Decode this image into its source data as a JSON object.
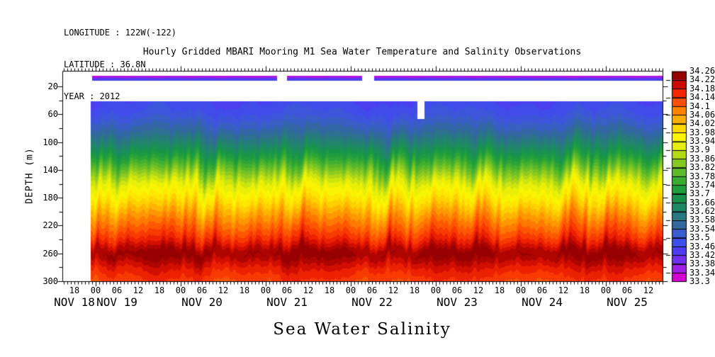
{
  "header": {
    "longitude": "LONGITUDE : 122W(-122)",
    "latitude": "LATITUDE : 36.8N",
    "year": "YEAR : 2012"
  },
  "title": "Hourly Gridded MBARI Mooring M1 Sea Water Temperature and Salinity Observations",
  "footer_title": "Sea Water Salinity",
  "chart_data": {
    "type": "heatmap",
    "title": "Hourly Gridded MBARI Mooring M1 Sea Water Temperature and Salinity Observations",
    "subtitle": "Sea Water Salinity",
    "ylabel": "DEPTH (m)",
    "x_axis": {
      "kind": "time",
      "start": "2012-11-18 14:30",
      "end": "2012-11-25 16:00",
      "first_labeled_hour": 18,
      "label_step_hours": 6,
      "minor_tick_every_hours": 1,
      "major_tick_every_hours": 24,
      "hour_tick_labels": [
        "18",
        "00",
        "06",
        "12",
        "18",
        "00",
        "06",
        "12",
        "18",
        "00",
        "06",
        "12",
        "18",
        "00",
        "06",
        "12",
        "18",
        "00",
        "06",
        "12",
        "18",
        "00",
        "06",
        "12",
        "18",
        "00",
        "06",
        "12"
      ],
      "date_labels": [
        {
          "text": "NOV 18",
          "hour": 18
        },
        {
          "text": "NOV 19",
          "hour": 30
        },
        {
          "text": "NOV 20",
          "hour": 54
        },
        {
          "text": "NOV 21",
          "hour": 78
        },
        {
          "text": "NOV 22",
          "hour": 102
        },
        {
          "text": "NOV 23",
          "hour": 126
        },
        {
          "text": "NOV 24",
          "hour": 150
        },
        {
          "text": "NOV 25",
          "hour": 174
        }
      ]
    },
    "y_axis": {
      "label": "DEPTH (m)",
      "units": "m",
      "range": [
        -2,
        300
      ],
      "labeled_ticks": [
        20,
        60,
        100,
        140,
        180,
        220,
        260,
        300
      ],
      "minor_ticks": [
        40,
        80,
        120,
        160,
        200,
        240,
        280
      ]
    },
    "colorbar": {
      "min": 33.3,
      "max": 34.26,
      "step": 0.04,
      "labels_top_to_bottom": [
        "34.26",
        "34.22",
        "34.18",
        "34.14",
        "34.1",
        "34.06",
        "34.02",
        "33.98",
        "33.94",
        "33.9",
        "33.86",
        "33.82",
        "33.78",
        "33.74",
        "33.7",
        "33.66",
        "33.62",
        "33.58",
        "33.54",
        "33.5",
        "33.46",
        "33.42",
        "33.38",
        "33.34",
        "33.3"
      ],
      "cell_colors_low_to_high": [
        "#D400D4",
        "#A01EE6",
        "#7030EE",
        "#4E3CF2",
        "#3E4EE8",
        "#3A5CCC",
        "#32689E",
        "#287880",
        "#1E8866",
        "#17924E",
        "#209E3C",
        "#3AAC30",
        "#5EBA28",
        "#86C822",
        "#B4DA16",
        "#E4EE08",
        "#FDF500",
        "#FFD800",
        "#FFAE00",
        "#FF8200",
        "#FF5000",
        "#F22600",
        "#CC0A00",
        "#960000"
      ]
    },
    "field": {
      "data_start_hour": 22.6,
      "data_end_hour": 184,
      "top_depth_m": 41.4,
      "bottom_depth_m": 300,
      "missing_notch": {
        "start_hour": 114.8,
        "end_hour": 116.7,
        "from_depth_m": 41.4,
        "to_depth_m": 66
      },
      "quantize_step": 0.0267,
      "mean_salinity_profile": [
        [
          41,
          33.465
        ],
        [
          55,
          33.48
        ],
        [
          70,
          33.52
        ],
        [
          85,
          33.56
        ],
        [
          100,
          33.62
        ],
        [
          115,
          33.69
        ],
        [
          130,
          33.77
        ],
        [
          142,
          33.84
        ],
        [
          152,
          33.89
        ],
        [
          162,
          33.93
        ],
        [
          172,
          33.955
        ],
        [
          185,
          33.995
        ],
        [
          200,
          34.045
        ],
        [
          212,
          34.08
        ],
        [
          225,
          34.115
        ],
        [
          238,
          34.155
        ],
        [
          248,
          34.2
        ],
        [
          255,
          34.235
        ],
        [
          262,
          34.245
        ],
        [
          270,
          34.215
        ],
        [
          282,
          34.175
        ],
        [
          292,
          34.155
        ],
        [
          300,
          34.135
        ]
      ],
      "wave_amplitude_by_depth_m": [
        [
          41,
          3.5
        ],
        [
          70,
          6
        ],
        [
          100,
          8.5
        ],
        [
          130,
          11
        ],
        [
          155,
          13.5
        ],
        [
          180,
          14
        ],
        [
          205,
          13
        ],
        [
          230,
          10.5
        ],
        [
          255,
          8
        ],
        [
          280,
          6
        ],
        [
          300,
          5
        ]
      ],
      "wave_components": [
        {
          "period_h": 12.42,
          "weight": 0.4,
          "phase": 0.8,
          "z_phase": 0.01
        },
        {
          "period_h": 6.21,
          "weight": 0.28,
          "phase": 2.1,
          "z_phase": 0.02
        },
        {
          "period_h": 3.05,
          "weight": 0.3,
          "phase": 4.0,
          "z_phase": 0.016
        },
        {
          "period_h": 2.05,
          "weight": 0.24,
          "phase": 1.3,
          "z_phase": 0.028
        },
        {
          "period_h": 8.3,
          "weight": 0.22,
          "phase": 5.5,
          "z_phase": 0.008
        },
        {
          "period_h": 1.45,
          "weight": 0.14,
          "phase": 0.2,
          "z_phase": 0.04
        }
      ],
      "amp_envelope_waves": [
        {
          "period_h": 27.5,
          "weight": 0.35,
          "phase": 2.2
        },
        {
          "period_h": 53.0,
          "weight": 0.2,
          "phase": 0.7
        }
      ],
      "slow_salinity_waves": [
        {
          "period_h": 41.0,
          "amp": 0.015,
          "phase": 1.2
        },
        {
          "period_h": 13.0,
          "amp": 0.008,
          "phase": 0.5
        }
      ]
    },
    "surface_bar": {
      "depth_top_m": 4.7,
      "depth_bottom_m": 10.8,
      "segments_hours": [
        [
          23,
          75
        ],
        [
          78,
          99
        ],
        [
          102.6,
          184
        ]
      ],
      "salinity_top": 33.33,
      "salinity_gradient_per_m": 0.023
    }
  }
}
